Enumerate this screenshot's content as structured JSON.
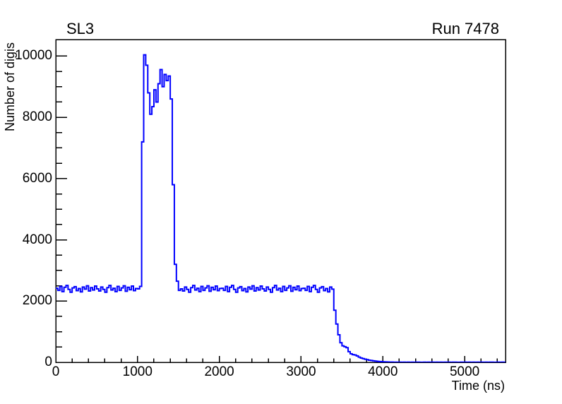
{
  "page": {
    "background": "#ffffff",
    "text_color": "#000000"
  },
  "header": {
    "left_title": "SL3",
    "right_title": "Run 7478"
  },
  "chart_data": {
    "type": "line",
    "subtype": "histogram-step",
    "title": "SL3",
    "corner_label": "Run 7478",
    "xlabel": "Time (ns)",
    "ylabel": "Number of digis",
    "xlim": [
      0,
      5500
    ],
    "ylim": [
      0,
      10540
    ],
    "grid": false,
    "legend": "none",
    "line_color": "#0000ff",
    "x_major_ticks": [
      0,
      1000,
      2000,
      3000,
      4000,
      5000
    ],
    "x_tick_labels": [
      "0",
      "1000",
      "2000",
      "3000",
      "4000",
      "5000"
    ],
    "x_minor_step": 200,
    "y_major_ticks": [
      0,
      2000,
      4000,
      6000,
      8000,
      10000
    ],
    "y_tick_labels": [
      "0",
      "2000",
      "4000",
      "6000",
      "8000",
      "10000"
    ],
    "y_minor_step": 500,
    "baseline_level": 2400,
    "peak_max": 10040,
    "bin_start": 0,
    "bin_width": 25,
    "values": [
      2420,
      2350,
      2480,
      2310,
      2450,
      2510,
      2380,
      2290,
      2430,
      2470,
      2340,
      2410,
      2300,
      2460,
      2390,
      2500,
      2330,
      2440,
      2360,
      2490,
      2400,
      2330,
      2460,
      2380,
      2290,
      2440,
      2510,
      2360,
      2420,
      2310,
      2480,
      2350,
      2430,
      2500,
      2320,
      2450,
      2370,
      2490,
      2340,
      2410,
      2400,
      2480,
      7200,
      10040,
      9700,
      8800,
      8100,
      8350,
      8900,
      8500,
      9100,
      9560,
      9000,
      9400,
      9200,
      9350,
      8600,
      5800,
      3200,
      2650,
      2350,
      2400,
      2330,
      2460,
      2380,
      2290,
      2440,
      2510,
      2360,
      2420,
      2310,
      2480,
      2350,
      2430,
      2500,
      2320,
      2450,
      2370,
      2490,
      2340,
      2410,
      2420,
      2350,
      2480,
      2310,
      2450,
      2510,
      2380,
      2290,
      2430,
      2470,
      2340,
      2410,
      2300,
      2460,
      2390,
      2500,
      2330,
      2440,
      2360,
      2490,
      2400,
      2330,
      2460,
      2380,
      2290,
      2440,
      2510,
      2360,
      2420,
      2310,
      2480,
      2350,
      2430,
      2500,
      2320,
      2450,
      2370,
      2490,
      2340,
      2410,
      2420,
      2350,
      2480,
      2310,
      2450,
      2510,
      2380,
      2290,
      2430,
      2470,
      2340,
      2410,
      2300,
      2460,
      2390,
      1700,
      1250,
      900,
      640,
      540,
      510,
      480,
      350,
      280,
      250,
      240,
      210,
      170,
      140,
      120,
      100,
      85,
      70,
      60,
      50,
      40,
      32,
      26,
      22,
      18,
      15,
      12,
      10,
      8,
      6,
      5,
      4,
      6,
      3,
      5,
      4,
      7,
      3,
      5,
      4,
      6,
      5,
      3,
      4,
      6,
      4,
      5,
      3,
      5,
      4,
      6,
      3,
      5,
      4,
      7,
      3,
      5,
      4,
      6,
      5,
      3,
      4,
      6,
      4,
      5,
      3,
      5,
      4,
      6,
      3,
      5,
      4,
      7,
      3,
      5,
      4,
      6,
      5,
      3,
      4,
      6,
      4,
      5,
      3
    ]
  }
}
